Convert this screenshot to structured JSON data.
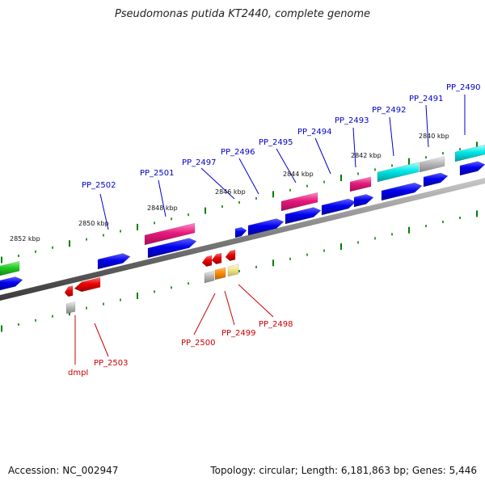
{
  "title": "Pseudomonas putida KT2440, complete genome",
  "footer": {
    "accession": "Accession: NC_002947",
    "summary": "Topology: circular; Length: 6,181,863 bp; Genes: 5,446"
  },
  "colors": {
    "background": "#ffffff",
    "backbone": "#808080",
    "tick": "#008000",
    "forward_label": "#0000cc",
    "reverse_label": "#cc0000",
    "gene_blue": "#0000ee",
    "gene_red": "#ee0000",
    "gene_magenta": "#e6197d",
    "gene_cyan": "#00e6e6",
    "gene_green": "#22cc22",
    "gene_gray": "#b8b8b8",
    "gene_orange": "#ff8c00",
    "gene_khaki": "#f0e68c"
  },
  "scale_labels": [
    "2852 kbp",
    "2850 kbp",
    "2848 kbp",
    "2846 kbp",
    "2844 kbp",
    "2842 kbp",
    "2840 kbp"
  ],
  "forward_genes": [
    "PP_2502",
    "PP_2501",
    "PP_2497",
    "PP_2496",
    "PP_2495",
    "PP_2494",
    "PP_2493",
    "PP_2492",
    "PP_2491",
    "PP_2490"
  ],
  "reverse_genes": [
    "dmpI",
    "PP_2503",
    "PP_2500",
    "PP_2499",
    "PP_2498"
  ]
}
